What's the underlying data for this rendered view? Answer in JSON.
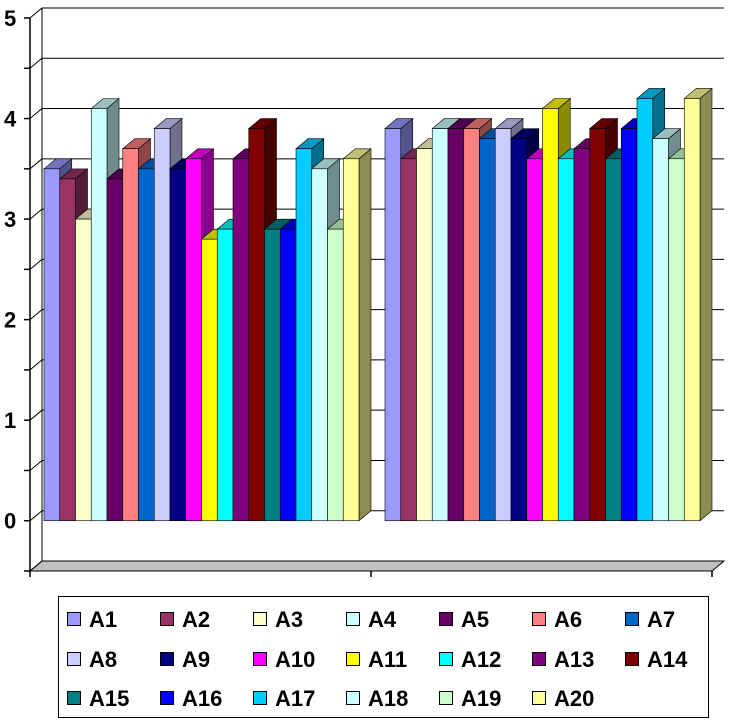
{
  "chart_data": {
    "type": "bar",
    "title": "",
    "xlabel": "",
    "ylabel": "",
    "ylim": [
      -0.5,
      5
    ],
    "yticks": [
      "0",
      "1",
      "2",
      "3",
      "4",
      "5"
    ],
    "grid": true,
    "legend_placement": "bottom",
    "categories": [
      "",
      ""
    ],
    "series": [
      {
        "name": "A1",
        "color": "#9999ff",
        "values": [
          3.5,
          3.9
        ]
      },
      {
        "name": "A2",
        "color": "#993366",
        "values": [
          3.4,
          3.6
        ]
      },
      {
        "name": "A3",
        "color": "#ffffcc",
        "values": [
          3.0,
          3.7
        ]
      },
      {
        "name": "A4",
        "color": "#ccffff",
        "values": [
          4.1,
          3.9
        ]
      },
      {
        "name": "A5",
        "color": "#660066",
        "values": [
          3.4,
          3.9
        ]
      },
      {
        "name": "A6",
        "color": "#ff8080",
        "values": [
          3.7,
          3.9
        ]
      },
      {
        "name": "A7",
        "color": "#0066cc",
        "values": [
          3.5,
          3.8
        ]
      },
      {
        "name": "A8",
        "color": "#ccccff",
        "values": [
          3.9,
          3.9
        ]
      },
      {
        "name": "A9",
        "color": "#000080",
        "values": [
          3.5,
          3.8
        ]
      },
      {
        "name": "A10",
        "color": "#ff00ff",
        "values": [
          3.6,
          3.6
        ]
      },
      {
        "name": "A11",
        "color": "#ffff00",
        "values": [
          2.8,
          4.1
        ]
      },
      {
        "name": "A12",
        "color": "#00ffff",
        "values": [
          2.9,
          3.6
        ]
      },
      {
        "name": "A13",
        "color": "#800080",
        "values": [
          3.6,
          3.7
        ]
      },
      {
        "name": "A14",
        "color": "#800000",
        "values": [
          3.9,
          3.9
        ]
      },
      {
        "name": "A15",
        "color": "#008080",
        "values": [
          2.9,
          3.6
        ]
      },
      {
        "name": "A16",
        "color": "#0000ff",
        "values": [
          2.9,
          3.9
        ]
      },
      {
        "name": "A17",
        "color": "#00ccff",
        "values": [
          3.7,
          4.2
        ]
      },
      {
        "name": "A18",
        "color": "#ccffff",
        "values": [
          3.5,
          3.8
        ]
      },
      {
        "name": "A19",
        "color": "#ccffcc",
        "values": [
          2.9,
          3.6
        ]
      },
      {
        "name": "A20",
        "color": "#ffff99",
        "values": [
          3.6,
          4.2
        ]
      }
    ]
  }
}
